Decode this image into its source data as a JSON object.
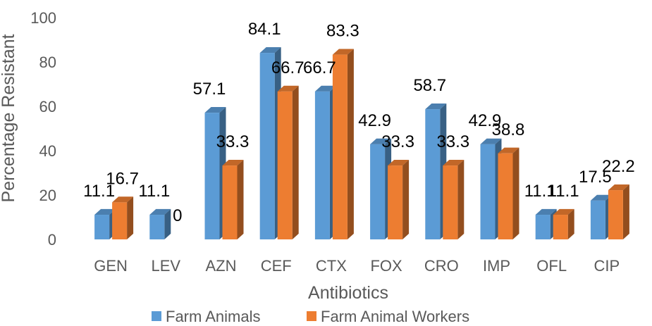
{
  "chart_data": {
    "type": "bar",
    "xlabel": "Antibiotics",
    "ylabel": "Percentage Resistant",
    "ylim": [
      0,
      100
    ],
    "yticks": [
      0,
      20,
      40,
      60,
      80,
      100
    ],
    "grid": false,
    "legend_position": "bottom",
    "categories": [
      "GEN",
      "LEV",
      "AZN",
      "CEF",
      "CTX",
      "FOX",
      "CRO",
      "IMP",
      "OFL",
      "CIP"
    ],
    "series": [
      {
        "name": "Farm Animals",
        "color": "#5B9BD5",
        "values": [
          11.1,
          11.1,
          57.1,
          84.1,
          66.7,
          42.9,
          58.7,
          42.9,
          11.1,
          17.5
        ],
        "labels": [
          "11.1",
          "11.1",
          "57.1",
          "84.1",
          "66.7",
          "42.9",
          "58.7",
          "42.9",
          "11.1",
          "17.5"
        ]
      },
      {
        "name": "Farm Animal Workers",
        "color": "#ED7D31",
        "values": [
          16.7,
          0,
          33.3,
          66.7,
          83.3,
          33.3,
          33.3,
          38.8,
          11.1,
          22.2
        ],
        "labels": [
          "16.7",
          "0",
          "33.3",
          "66.7",
          "83.3",
          "33.3",
          "33.3",
          "38.8",
          "11.1",
          "22.2"
        ]
      }
    ]
  }
}
